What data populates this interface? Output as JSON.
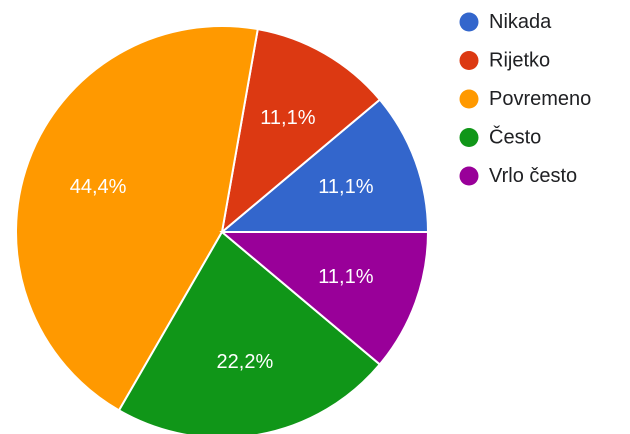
{
  "chart_data": {
    "type": "pie",
    "categories": [
      "Nikada",
      "Rijetko",
      "Povremeno",
      "Često",
      "Vrlo često"
    ],
    "values": [
      11.1,
      11.1,
      44.4,
      22.2,
      11.1
    ],
    "value_labels": [
      "11,1%",
      "11,1%",
      "44,4%",
      "22,2%",
      "11,1%"
    ],
    "colors": [
      "#3366cc",
      "#dc3912",
      "#ff9900",
      "#109618",
      "#990099"
    ],
    "legend_position": "right",
    "start_direction": "east, counter-clockwise"
  }
}
